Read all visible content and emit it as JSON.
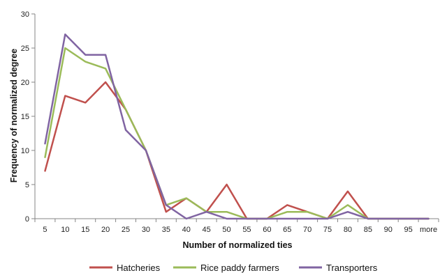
{
  "chart_data": {
    "type": "line",
    "title": "",
    "xlabel": "Number of normalized ties",
    "ylabel": "Frequency of normalized degree",
    "categories": [
      "5",
      "10",
      "15",
      "20",
      "25",
      "30",
      "35",
      "40",
      "45",
      "50",
      "55",
      "60",
      "65",
      "70",
      "75",
      "80",
      "85",
      "90",
      "95",
      "more"
    ],
    "ylim": [
      0,
      30
    ],
    "yticks": [
      0,
      5,
      10,
      15,
      20,
      25,
      30
    ],
    "grid": false,
    "legend_position": "bottom",
    "series": [
      {
        "name": "Hatcheries",
        "color": "#c0504d",
        "values": [
          7,
          18,
          17,
          20,
          16,
          10,
          1,
          3,
          1,
          5,
          0,
          0,
          2,
          1,
          0,
          4,
          0,
          0,
          0,
          0
        ]
      },
      {
        "name": "Rice paddy farmers",
        "color": "#9bbb59",
        "values": [
          9,
          25,
          23,
          22,
          16,
          10,
          2,
          3,
          1,
          1,
          0,
          0,
          1,
          1,
          0,
          2,
          0,
          0,
          0,
          0
        ]
      },
      {
        "name": "Transporters",
        "color": "#8064a2",
        "values": [
          11,
          27,
          24,
          24,
          13,
          10,
          2,
          0,
          1,
          0,
          0,
          0,
          0,
          0,
          0,
          1,
          0,
          0,
          0,
          0
        ]
      }
    ]
  }
}
